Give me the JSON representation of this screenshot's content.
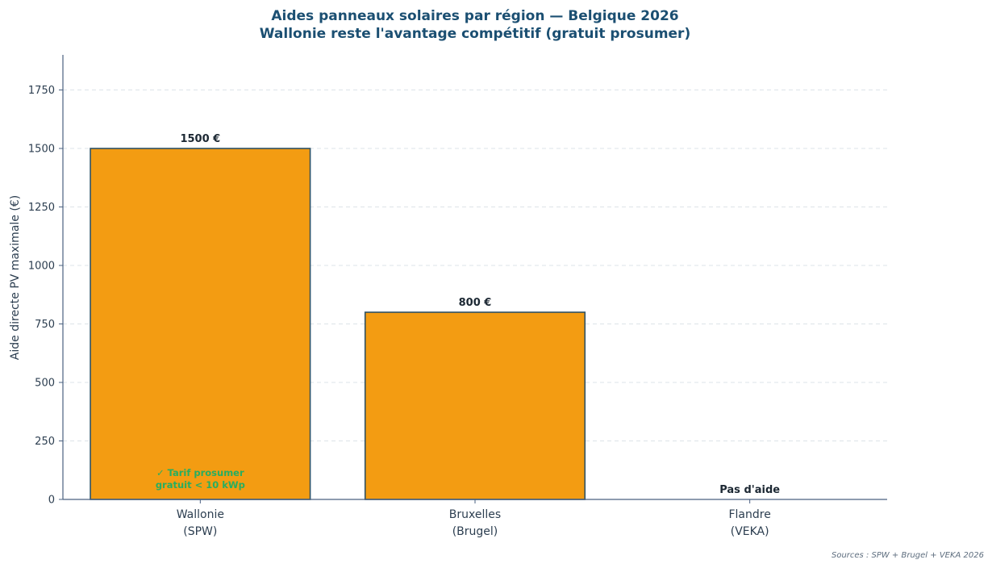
{
  "chart_data": {
    "type": "bar",
    "title": "Aides panneaux solaires par région — Belgique 2026",
    "subtitle": "Wallonie reste l'avantage compétitif (gratuit prosumer)",
    "ylabel": "Aide directe PV maximale (€)",
    "xlabel": "",
    "ylim": [
      0,
      1900
    ],
    "yticks": [
      0,
      250,
      500,
      750,
      1000,
      1250,
      1500,
      1750
    ],
    "grid": true,
    "categories": [
      {
        "line1": "Wallonie",
        "line2": "(SPW)"
      },
      {
        "line1": "Bruxelles",
        "line2": "(Brugel)"
      },
      {
        "line1": "Flandre",
        "line2": "(VEKA)"
      }
    ],
    "values": [
      1500,
      800,
      0
    ],
    "data_labels": [
      "1500 €",
      "800 €",
      "Pas d'aide"
    ],
    "annotation": {
      "category_index": 0,
      "line1": "✓ Tarif prosumer",
      "line2": "gratuit < 10 kWp"
    },
    "colors": {
      "bar_fill": "#f39c12",
      "bar_edge": "#2e5266",
      "axis": "#4a6080",
      "grid": "#dde3e8",
      "title": "#1b4f72",
      "annotation": "#27ae60"
    },
    "source": "Sources : SPW + Brugel + VEKA 2026"
  }
}
